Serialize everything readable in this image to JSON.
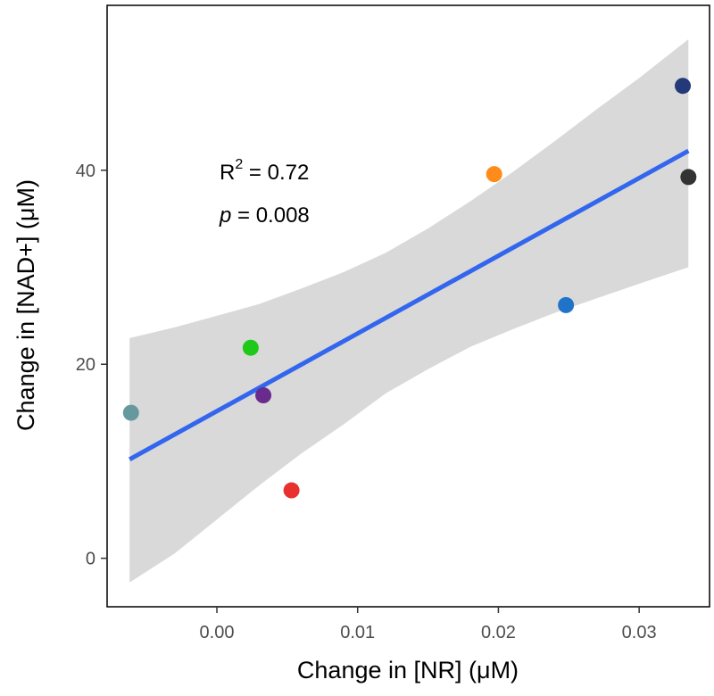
{
  "chart_data": {
    "type": "scatter",
    "title": "",
    "xlabel": "Change in [NR] (μM)",
    "ylabel": "Change in [NAD+] (μM)",
    "xlim": [
      -0.0078,
      0.035
    ],
    "ylim": [
      -5,
      57
    ],
    "x_ticks": [
      0.0,
      0.01,
      0.02,
      0.03
    ],
    "x_tick_labels": [
      "0.00",
      "0.01",
      "0.02",
      "0.03"
    ],
    "y_ticks": [
      0,
      20,
      40
    ],
    "y_tick_labels": [
      "0",
      "20",
      "40"
    ],
    "grid": false,
    "points": [
      {
        "x": -0.0061,
        "y": 15.0,
        "color": "#66999e"
      },
      {
        "x": 0.0024,
        "y": 21.7,
        "color": "#1fc919"
      },
      {
        "x": 0.0033,
        "y": 16.8,
        "color": "#6a2b8f"
      },
      {
        "x": 0.0053,
        "y": 7.0,
        "color": "#e8302f"
      },
      {
        "x": 0.0197,
        "y": 39.6,
        "color": "#ff8c1a"
      },
      {
        "x": 0.0248,
        "y": 26.1,
        "color": "#1f73c9"
      },
      {
        "x": 0.0331,
        "y": 48.7,
        "color": "#24397a"
      },
      {
        "x": 0.0335,
        "y": 39.3,
        "color": "#333333"
      }
    ],
    "regression": {
      "x": [
        -0.0062,
        0.0335
      ],
      "y": [
        10.2,
        42.0
      ],
      "color": "#3366ee",
      "band_color": "#d9d9d9",
      "band": {
        "x": [
          -0.0062,
          -0.003,
          0.0,
          0.003,
          0.006,
          0.009,
          0.012,
          0.015,
          0.018,
          0.021,
          0.024,
          0.027,
          0.03,
          0.0335
        ],
        "upper": [
          22.7,
          23.8,
          25.0,
          26.2,
          27.8,
          29.5,
          31.5,
          34.0,
          36.8,
          39.8,
          43.0,
          46.3,
          49.5,
          53.5
        ],
        "lower": [
          -2.5,
          0.5,
          4.0,
          7.5,
          10.8,
          13.8,
          17.0,
          19.5,
          21.8,
          23.6,
          25.3,
          26.8,
          28.3,
          30.0
        ]
      }
    },
    "annotations": {
      "r2_label": "R",
      "r2_sup": "2",
      "r2_value": " = 0.72",
      "p_label": "p",
      "p_value": " = 0.008"
    },
    "legend": "none"
  }
}
